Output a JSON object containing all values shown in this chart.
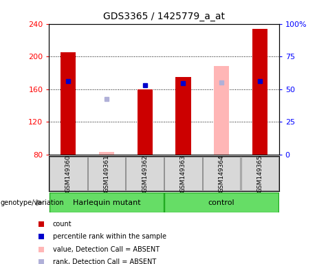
{
  "title": "GDS3365 / 1425779_a_at",
  "samples": [
    "GSM149360",
    "GSM149361",
    "GSM149362",
    "GSM149363",
    "GSM149364",
    "GSM149365"
  ],
  "ylim": [
    80,
    240
  ],
  "yticks": [
    80,
    120,
    160,
    200,
    240
  ],
  "y2ticks": [
    0,
    25,
    50,
    75,
    100
  ],
  "y2labels": [
    "0",
    "25",
    "50",
    "75",
    "100%"
  ],
  "bar_width": 0.4,
  "red_bars": [
    205,
    null,
    160,
    175,
    null,
    234
  ],
  "pink_bars": [
    null,
    83,
    null,
    null,
    188,
    null
  ],
  "blue_squares": [
    170,
    null,
    165,
    167,
    null,
    170
  ],
  "lavender_squares": [
    null,
    148,
    null,
    null,
    168,
    null
  ],
  "red_color": "#cc0000",
  "pink_color": "#ffb6b6",
  "blue_color": "#0000cc",
  "lavender_color": "#b0b0d8",
  "legend_items": [
    {
      "label": "count",
      "color": "#cc0000"
    },
    {
      "label": "percentile rank within the sample",
      "color": "#0000cc"
    },
    {
      "label": "value, Detection Call = ABSENT",
      "color": "#ffb6b6"
    },
    {
      "label": "rank, Detection Call = ABSENT",
      "color": "#b0b0d8"
    }
  ],
  "group_label_text": "genotype/variation",
  "harlequin_label": "Harlequin mutant",
  "control_label": "control",
  "green_color": "#66dd66",
  "green_edge": "#22aa22",
  "sample_box_color": "#d8d8d8",
  "sample_box_edge": "#888888",
  "panel_bg": "#c8c8c8"
}
